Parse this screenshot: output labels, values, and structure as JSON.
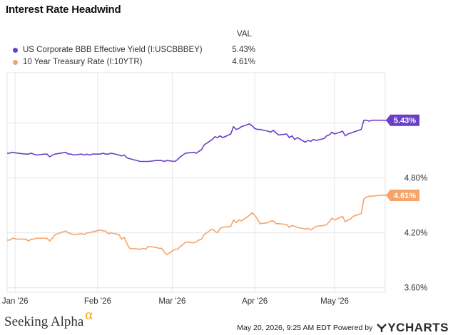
{
  "title": "Interest Rate Headwind",
  "legend": {
    "value_header": "VAL"
  },
  "footer": {
    "brand_name": "Seeking Alpha",
    "brand_symbol": "α",
    "timestamp": "May 20, 2026, 9:25 AM EDT Powered by",
    "powered_brand": "YCHARTS"
  },
  "chart_data": {
    "type": "line",
    "title": "Interest Rate Headwind",
    "xlabel": "",
    "ylabel": "",
    "x_ticks": [
      "Jan '26",
      "Feb '26",
      "Mar '26",
      "Apr '26",
      "May '26"
    ],
    "y_ticks": [
      "3.60%",
      "4.20%",
      "4.80%"
    ],
    "ylim": [
      3.55,
      5.95
    ],
    "grid": true,
    "legend_position": "top-left",
    "x_start": "2025-12-29",
    "x_end": "2026-05-20",
    "series": [
      {
        "name": "US Corporate BBB Effective Yield (I:USCBBBEY)",
        "value_label": "5.43%",
        "color": "#6a3fc8",
        "points": [
          [
            "2025-12-29",
            5.07
          ],
          [
            "2025-12-30",
            5.07
          ],
          [
            "2025-12-31",
            5.08
          ],
          [
            "2026-01-02",
            5.07
          ],
          [
            "2026-01-05",
            5.06
          ],
          [
            "2026-01-06",
            5.06
          ],
          [
            "2026-01-07",
            5.07
          ],
          [
            "2026-01-08",
            5.06
          ],
          [
            "2026-01-09",
            5.05
          ],
          [
            "2026-01-12",
            5.06
          ],
          [
            "2026-01-13",
            5.06
          ],
          [
            "2026-01-14",
            5.03
          ],
          [
            "2026-01-15",
            5.05
          ],
          [
            "2026-01-16",
            5.06
          ],
          [
            "2026-01-20",
            5.08
          ],
          [
            "2026-01-21",
            5.06
          ],
          [
            "2026-01-22",
            5.06
          ],
          [
            "2026-01-23",
            5.05
          ],
          [
            "2026-01-26",
            5.06
          ],
          [
            "2026-01-27",
            5.05
          ],
          [
            "2026-01-28",
            5.06
          ],
          [
            "2026-01-29",
            5.05
          ],
          [
            "2026-01-30",
            5.06
          ],
          [
            "2026-02-02",
            5.06
          ],
          [
            "2026-02-03",
            5.07
          ],
          [
            "2026-02-04",
            5.06
          ],
          [
            "2026-02-05",
            5.06
          ],
          [
            "2026-02-06",
            5.07
          ],
          [
            "2026-02-09",
            5.05
          ],
          [
            "2026-02-10",
            5.04
          ],
          [
            "2026-02-11",
            5.05
          ],
          [
            "2026-02-12",
            5.02
          ],
          [
            "2026-02-13",
            5.01
          ],
          [
            "2026-02-17",
            4.98
          ],
          [
            "2026-02-18",
            4.98
          ],
          [
            "2026-02-19",
            4.98
          ],
          [
            "2026-02-20",
            4.98
          ],
          [
            "2026-02-23",
            4.99
          ],
          [
            "2026-02-24",
            4.99
          ],
          [
            "2026-02-25",
            4.99
          ],
          [
            "2026-02-26",
            4.98
          ],
          [
            "2026-02-27",
            4.99
          ],
          [
            "2026-03-02",
            4.98
          ],
          [
            "2026-03-03",
            5.0
          ],
          [
            "2026-03-04",
            5.03
          ],
          [
            "2026-03-05",
            5.05
          ],
          [
            "2026-03-06",
            5.07
          ],
          [
            "2026-03-09",
            5.08
          ],
          [
            "2026-03-10",
            5.07
          ],
          [
            "2026-03-11",
            5.09
          ],
          [
            "2026-03-12",
            5.11
          ],
          [
            "2026-03-13",
            5.16
          ],
          [
            "2026-03-16",
            5.22
          ],
          [
            "2026-03-17",
            5.25
          ],
          [
            "2026-03-18",
            5.24
          ],
          [
            "2026-03-19",
            5.26
          ],
          [
            "2026-03-20",
            5.24
          ],
          [
            "2026-03-23",
            5.28
          ],
          [
            "2026-03-24",
            5.36
          ],
          [
            "2026-03-25",
            5.33
          ],
          [
            "2026-03-26",
            5.34
          ],
          [
            "2026-03-27",
            5.36
          ],
          [
            "2026-03-30",
            5.39
          ],
          [
            "2026-03-31",
            5.37
          ],
          [
            "2026-04-01",
            5.34
          ],
          [
            "2026-04-02",
            5.33
          ],
          [
            "2026-04-03",
            5.33
          ],
          [
            "2026-04-06",
            5.31
          ],
          [
            "2026-04-07",
            5.3
          ],
          [
            "2026-04-08",
            5.32
          ],
          [
            "2026-04-09",
            5.29
          ],
          [
            "2026-04-10",
            5.27
          ],
          [
            "2026-04-13",
            5.28
          ],
          [
            "2026-04-14",
            5.24
          ],
          [
            "2026-04-15",
            5.26
          ],
          [
            "2026-04-16",
            5.22
          ],
          [
            "2026-04-17",
            5.24
          ],
          [
            "2026-04-20",
            5.19
          ],
          [
            "2026-04-21",
            5.21
          ],
          [
            "2026-04-22",
            5.2
          ],
          [
            "2026-04-23",
            5.22
          ],
          [
            "2026-04-24",
            5.21
          ],
          [
            "2026-04-27",
            5.23
          ],
          [
            "2026-04-28",
            5.26
          ],
          [
            "2026-04-29",
            5.27
          ],
          [
            "2026-04-30",
            5.3
          ],
          [
            "2026-05-01",
            5.28
          ],
          [
            "2026-05-04",
            5.31
          ],
          [
            "2026-05-05",
            5.26
          ],
          [
            "2026-05-06",
            5.28
          ],
          [
            "2026-05-07",
            5.29
          ],
          [
            "2026-05-08",
            5.3
          ],
          [
            "2026-05-11",
            5.33
          ],
          [
            "2026-05-12",
            5.43
          ],
          [
            "2026-05-13",
            5.43
          ],
          [
            "2026-05-14",
            5.42
          ],
          [
            "2026-05-15",
            5.43
          ],
          [
            "2026-05-18",
            5.43
          ],
          [
            "2026-05-19",
            5.43
          ]
        ]
      },
      {
        "name": "10 Year Treasury Rate (I:10YTR)",
        "value_label": "4.61%",
        "color": "#f5a46a",
        "points": [
          [
            "2025-12-29",
            4.12
          ],
          [
            "2025-12-30",
            4.12
          ],
          [
            "2025-12-31",
            4.14
          ],
          [
            "2026-01-02",
            4.13
          ],
          [
            "2026-01-05",
            4.13
          ],
          [
            "2026-01-06",
            4.11
          ],
          [
            "2026-01-07",
            4.13
          ],
          [
            "2026-01-08",
            4.13
          ],
          [
            "2026-01-09",
            4.14
          ],
          [
            "2026-01-12",
            4.14
          ],
          [
            "2026-01-13",
            4.14
          ],
          [
            "2026-01-14",
            4.11
          ],
          [
            "2026-01-15",
            4.14
          ],
          [
            "2026-01-16",
            4.18
          ],
          [
            "2026-01-20",
            4.22
          ],
          [
            "2026-01-21",
            4.2
          ],
          [
            "2026-01-22",
            4.19
          ],
          [
            "2026-01-23",
            4.18
          ],
          [
            "2026-01-26",
            4.19
          ],
          [
            "2026-01-27",
            4.18
          ],
          [
            "2026-01-28",
            4.2
          ],
          [
            "2026-01-29",
            4.2
          ],
          [
            "2026-01-30",
            4.21
          ],
          [
            "2026-02-02",
            4.23
          ],
          [
            "2026-02-03",
            4.22
          ],
          [
            "2026-02-04",
            4.22
          ],
          [
            "2026-02-05",
            4.19
          ],
          [
            "2026-02-06",
            4.2
          ],
          [
            "2026-02-09",
            4.18
          ],
          [
            "2026-02-10",
            4.13
          ],
          [
            "2026-02-11",
            4.15
          ],
          [
            "2026-02-12",
            4.08
          ],
          [
            "2026-02-13",
            4.03
          ],
          [
            "2026-02-17",
            4.02
          ],
          [
            "2026-02-18",
            4.03
          ],
          [
            "2026-02-19",
            4.02
          ],
          [
            "2026-02-20",
            4.05
          ],
          [
            "2026-02-23",
            4.04
          ],
          [
            "2026-02-24",
            4.03
          ],
          [
            "2026-02-25",
            4.03
          ],
          [
            "2026-02-26",
            3.99
          ],
          [
            "2026-02-27",
            3.96
          ],
          [
            "2026-03-02",
            4.02
          ],
          [
            "2026-03-03",
            4.02
          ],
          [
            "2026-03-04",
            4.05
          ],
          [
            "2026-03-05",
            4.07
          ],
          [
            "2026-03-06",
            4.1
          ],
          [
            "2026-03-09",
            4.09
          ],
          [
            "2026-03-10",
            4.1
          ],
          [
            "2026-03-11",
            4.12
          ],
          [
            "2026-03-12",
            4.13
          ],
          [
            "2026-03-13",
            4.18
          ],
          [
            "2026-03-16",
            4.24
          ],
          [
            "2026-03-17",
            4.22
          ],
          [
            "2026-03-18",
            4.2
          ],
          [
            "2026-03-19",
            4.25
          ],
          [
            "2026-03-20",
            4.26
          ],
          [
            "2026-03-23",
            4.27
          ],
          [
            "2026-03-24",
            4.34
          ],
          [
            "2026-03-25",
            4.31
          ],
          [
            "2026-03-26",
            4.34
          ],
          [
            "2026-03-27",
            4.33
          ],
          [
            "2026-03-30",
            4.39
          ],
          [
            "2026-03-31",
            4.42
          ],
          [
            "2026-04-01",
            4.39
          ],
          [
            "2026-04-02",
            4.35
          ],
          [
            "2026-04-03",
            4.3
          ],
          [
            "2026-04-06",
            4.31
          ],
          [
            "2026-04-07",
            4.33
          ],
          [
            "2026-04-08",
            4.33
          ],
          [
            "2026-04-09",
            4.3
          ],
          [
            "2026-04-10",
            4.3
          ],
          [
            "2026-04-13",
            4.29
          ],
          [
            "2026-04-14",
            4.26
          ],
          [
            "2026-04-15",
            4.28
          ],
          [
            "2026-04-16",
            4.27
          ],
          [
            "2026-04-17",
            4.26
          ],
          [
            "2026-04-20",
            4.24
          ],
          [
            "2026-04-21",
            4.25
          ],
          [
            "2026-04-22",
            4.23
          ],
          [
            "2026-04-23",
            4.25
          ],
          [
            "2026-04-24",
            4.27
          ],
          [
            "2026-04-27",
            4.28
          ],
          [
            "2026-04-28",
            4.29
          ],
          [
            "2026-04-29",
            4.32
          ],
          [
            "2026-04-30",
            4.36
          ],
          [
            "2026-05-01",
            4.34
          ],
          [
            "2026-05-04",
            4.38
          ],
          [
            "2026-05-05",
            4.32
          ],
          [
            "2026-05-06",
            4.34
          ],
          [
            "2026-05-07",
            4.35
          ],
          [
            "2026-05-08",
            4.38
          ],
          [
            "2026-05-11",
            4.41
          ],
          [
            "2026-05-12",
            4.57
          ],
          [
            "2026-05-13",
            4.59
          ],
          [
            "2026-05-14",
            4.6
          ],
          [
            "2026-05-15",
            4.6
          ],
          [
            "2026-05-18",
            4.61
          ],
          [
            "2026-05-19",
            4.61
          ]
        ]
      }
    ]
  }
}
